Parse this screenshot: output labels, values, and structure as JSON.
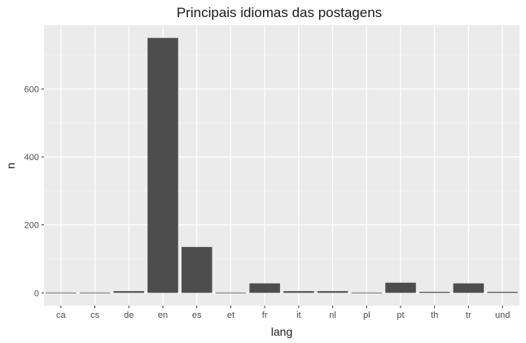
{
  "chart_data": {
    "type": "bar",
    "title": "Principais idiomas das postagens",
    "xlabel": "lang",
    "ylabel": "n",
    "categories": [
      "ca",
      "cs",
      "de",
      "en",
      "es",
      "et",
      "fr",
      "it",
      "nl",
      "pl",
      "pt",
      "th",
      "tr",
      "und"
    ],
    "values": [
      1,
      1,
      5,
      750,
      135,
      1,
      28,
      5,
      5,
      1,
      30,
      3,
      28,
      3
    ],
    "yticks": [
      0,
      200,
      400,
      600
    ],
    "ylim": [
      -37.5,
      787.5
    ],
    "grid": true,
    "colors": {
      "bar": "#4d4d4d",
      "panel": "#ebebeb",
      "grid_major": "#ffffff",
      "grid_minor": "#f5f5f5"
    }
  }
}
